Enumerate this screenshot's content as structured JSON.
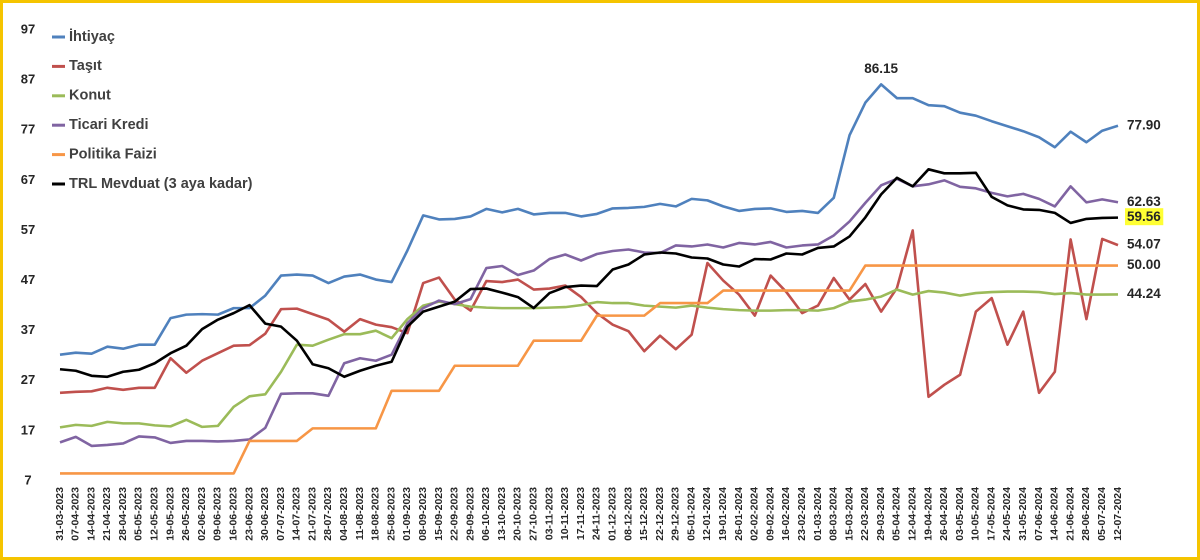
{
  "chart_data": {
    "type": "line",
    "categories": [
      "31-03-2023",
      "07-04-2023",
      "14-04-2023",
      "21-04-2023",
      "28-04-2023",
      "05-05-2023",
      "12-05-2023",
      "19-05-2023",
      "26-05-2023",
      "02-06-2023",
      "09-06-2023",
      "16-06-2023",
      "23-06-2023",
      "30-06-2023",
      "07-07-2023",
      "14-07-2023",
      "21-07-2023",
      "28-07-2023",
      "04-08-2023",
      "11-08-2023",
      "18-08-2023",
      "25-08-2023",
      "01-09-2023",
      "08-09-2023",
      "15-09-2023",
      "22-09-2023",
      "29-09-2023",
      "06-10-2023",
      "13-10-2023",
      "20-10-2023",
      "27-10-2023",
      "03-11-2023",
      "10-11-2023",
      "17-11-2023",
      "24-11-2023",
      "01-12-2023",
      "08-12-2023",
      "15-12-2023",
      "22-12-2023",
      "29-12-2023",
      "05-01-2024",
      "12-01-2024",
      "19-01-2024",
      "26-01-2024",
      "02-02-2024",
      "09-02-2024",
      "16-02-2024",
      "23-02-2024",
      "01-03-2024",
      "08-03-2024",
      "15-03-2024",
      "22-03-2024",
      "29-03-2024",
      "05-04-2024",
      "12-04-2024",
      "19-04-2024",
      "26-04-2024",
      "03-05-2024",
      "10-05-2024",
      "17-05-2024",
      "24-05-2024",
      "31-05-2024",
      "07-06-2024",
      "14-06-2024",
      "21-06-2024",
      "28-06-2024",
      "05-07-2024",
      "12-07-2024"
    ],
    "ylim": [
      7,
      97
    ],
    "yticks": [
      7,
      17,
      27,
      37,
      47,
      57,
      67,
      77,
      87,
      97
    ],
    "grid": false,
    "legend": "top-left",
    "series": [
      {
        "name": "İhtiyaç",
        "color": "#4f81bd",
        "values": [
          32.2,
          32.6,
          32.4,
          33.8,
          33.4,
          34.2,
          34.2,
          39.5,
          40.2,
          40.3,
          40.2,
          41.5,
          41.5,
          44,
          48,
          48.2,
          48,
          46.5,
          47.8,
          48.2,
          47.2,
          46.7,
          53,
          60,
          59.2,
          59.3,
          59.8,
          61.3,
          60.6,
          61.3,
          60.2,
          60.5,
          60.5,
          59.8,
          60.3,
          61.4,
          61.5,
          61.7,
          62.3,
          61.8,
          63.3,
          63,
          61.8,
          60.9,
          61.3,
          61.4,
          60.7,
          60.9,
          60.5,
          63.5,
          76,
          82.5,
          86.15,
          83.4,
          83.4,
          82,
          81.8,
          80.5,
          79.9,
          78.8,
          77.8,
          76.8,
          75.6,
          73.6,
          76.7,
          74.6,
          76.9,
          77.9
        ],
        "value_labels": [
          null,
          null,
          null,
          null,
          null,
          null,
          null,
          null,
          null,
          null,
          null,
          null,
          null,
          null,
          null,
          null,
          null,
          null,
          null,
          null,
          null,
          null,
          null,
          null,
          null,
          null,
          null,
          null,
          null,
          null,
          null,
          null,
          null,
          null,
          null,
          null,
          null,
          null,
          null,
          null,
          null,
          null,
          null,
          null,
          null,
          null,
          null,
          null,
          null,
          null,
          null,
          null,
          "86.15",
          null,
          null,
          null,
          null,
          null,
          null,
          null,
          null,
          null,
          null,
          null,
          null,
          null,
          null,
          "77.90"
        ]
      },
      {
        "name": "Taşıt",
        "color": "#c0504d",
        "values": [
          24.6,
          24.8,
          24.9,
          25.6,
          25.2,
          25.6,
          25.6,
          31.5,
          28.6,
          31,
          32.5,
          34,
          34.1,
          36.4,
          41.3,
          41.4,
          40.3,
          39.2,
          36.8,
          39.3,
          38.2,
          37.7,
          36.5,
          46.5,
          47.6,
          43.2,
          41,
          46.9,
          46.7,
          47.2,
          45.2,
          45.4,
          46,
          43.7,
          40.5,
          38.2,
          36.9,
          32.9,
          36,
          33.3,
          36.2,
          50.5,
          47,
          44.2,
          40,
          48,
          44.7,
          40.5,
          42,
          47.5,
          43.2,
          46.3,
          40.8,
          45.5,
          57,
          23.8,
          26.2,
          28.2,
          40.8,
          43.5,
          34.2,
          40.8,
          24.6,
          28.8,
          55.2,
          39.3,
          55.3,
          54.07
        ],
        "value_labels": [
          null,
          null,
          null,
          null,
          null,
          null,
          null,
          null,
          null,
          null,
          null,
          null,
          null,
          null,
          null,
          null,
          null,
          null,
          null,
          null,
          null,
          null,
          null,
          null,
          null,
          null,
          null,
          null,
          null,
          null,
          null,
          null,
          null,
          null,
          null,
          null,
          null,
          null,
          null,
          null,
          null,
          null,
          null,
          null,
          null,
          null,
          null,
          null,
          null,
          null,
          null,
          null,
          null,
          null,
          null,
          null,
          null,
          null,
          null,
          null,
          null,
          null,
          null,
          null,
          null,
          null,
          null,
          "54.07"
        ]
      },
      {
        "name": "Konut",
        "color": "#9bbb59",
        "values": [
          17.7,
          18.2,
          18,
          18.8,
          18.5,
          18.5,
          18.1,
          17.9,
          19.2,
          17.8,
          18,
          21.8,
          23.9,
          24.3,
          28.8,
          34.2,
          34,
          35.2,
          36.3,
          36.3,
          37,
          35.5,
          39.3,
          42,
          42.8,
          42.3,
          41.8,
          41.6,
          41.5,
          41.5,
          41.5,
          41.6,
          41.7,
          42.1,
          42.7,
          42.5,
          42.5,
          42,
          41.8,
          41.6,
          42,
          41.6,
          41.3,
          41.1,
          41,
          41,
          41.1,
          41.1,
          41,
          41.5,
          42.8,
          43.2,
          43.8,
          45.2,
          44.2,
          44.9,
          44.6,
          44,
          44.5,
          44.7,
          44.8,
          44.8,
          44.7,
          44.3,
          44.5,
          44.2,
          44.2,
          44.24
        ],
        "value_labels": [
          null,
          null,
          null,
          null,
          null,
          null,
          null,
          null,
          null,
          null,
          null,
          null,
          null,
          null,
          null,
          null,
          null,
          null,
          null,
          null,
          null,
          null,
          null,
          null,
          null,
          null,
          null,
          null,
          null,
          null,
          null,
          null,
          null,
          null,
          null,
          null,
          null,
          null,
          null,
          null,
          null,
          null,
          null,
          null,
          null,
          null,
          null,
          null,
          null,
          null,
          null,
          null,
          null,
          null,
          null,
          null,
          null,
          null,
          null,
          null,
          null,
          null,
          null,
          null,
          null,
          null,
          null,
          "44.24"
        ]
      },
      {
        "name": "Ticari Kredi",
        "color": "#8064a2",
        "values": [
          14.7,
          15.8,
          14,
          14.2,
          14.5,
          15.9,
          15.7,
          14.6,
          15,
          15,
          14.9,
          15,
          15.3,
          17.6,
          24.4,
          24.5,
          24.5,
          24,
          30.5,
          31.5,
          31,
          32.2,
          38.5,
          41.5,
          43,
          42.3,
          43.3,
          49.5,
          49.9,
          48.1,
          49,
          51.3,
          52.2,
          51,
          52.3,
          52.9,
          53.2,
          52.6,
          52.5,
          54,
          53.8,
          54.2,
          53.6,
          54.5,
          54.2,
          54.7,
          53.6,
          54,
          54.2,
          56,
          58.8,
          62.5,
          66,
          67.3,
          65.8,
          66.2,
          67,
          65.7,
          65.4,
          64.5,
          63.8,
          64.3,
          63.3,
          61.8,
          65.8,
          62.6,
          63.2,
          62.63
        ],
        "value_labels": [
          null,
          null,
          null,
          null,
          null,
          null,
          null,
          null,
          null,
          null,
          null,
          null,
          null,
          null,
          null,
          null,
          null,
          null,
          null,
          null,
          null,
          null,
          null,
          null,
          null,
          null,
          null,
          null,
          null,
          null,
          null,
          null,
          null,
          null,
          null,
          null,
          null,
          null,
          null,
          null,
          null,
          null,
          null,
          null,
          null,
          null,
          null,
          null,
          null,
          null,
          null,
          null,
          null,
          null,
          null,
          null,
          null,
          null,
          null,
          null,
          null,
          null,
          null,
          null,
          null,
          null,
          null,
          "62.63"
        ]
      },
      {
        "name": "Politika Faizi",
        "color": "#f79646",
        "values": [
          8.5,
          8.5,
          8.5,
          8.5,
          8.5,
          8.5,
          8.5,
          8.5,
          8.5,
          8.5,
          8.5,
          8.5,
          15,
          15,
          15,
          15,
          17.5,
          17.5,
          17.5,
          17.5,
          17.5,
          25,
          25,
          25,
          25,
          30,
          30,
          30,
          30,
          30,
          35,
          35,
          35,
          35,
          40,
          40,
          40,
          40,
          42.5,
          42.5,
          42.5,
          42.5,
          45,
          45,
          45,
          45,
          45,
          45,
          45,
          45,
          45,
          50,
          50,
          50,
          50,
          50,
          50,
          50,
          50,
          50,
          50,
          50,
          50,
          50,
          50,
          50,
          50,
          50
        ],
        "value_labels": [
          null,
          null,
          null,
          null,
          null,
          null,
          null,
          null,
          null,
          null,
          null,
          null,
          null,
          null,
          null,
          null,
          null,
          null,
          null,
          null,
          null,
          null,
          null,
          null,
          null,
          null,
          null,
          null,
          null,
          null,
          null,
          null,
          null,
          null,
          null,
          null,
          null,
          null,
          null,
          null,
          null,
          null,
          null,
          null,
          null,
          null,
          null,
          null,
          null,
          null,
          null,
          null,
          null,
          null,
          null,
          null,
          null,
          null,
          null,
          null,
          null,
          null,
          null,
          null,
          null,
          null,
          null,
          "50.00"
        ]
      },
      {
        "name": "TRL Mevduat (3 aya kadar)",
        "color": "#000000",
        "highlight": "#ffff33",
        "values": [
          29.3,
          29,
          28,
          27.8,
          28.8,
          29.2,
          30.5,
          32.5,
          34,
          37.3,
          39.2,
          40.5,
          42.1,
          38.4,
          37.8,
          35,
          30.3,
          29.5,
          27.8,
          29,
          30,
          30.8,
          37.8,
          40.8,
          41.8,
          42.8,
          45.3,
          45.4,
          44.6,
          43.7,
          41.5,
          44.5,
          45.7,
          46,
          45.9,
          49.2,
          50.2,
          52.2,
          52.6,
          52.4,
          51.6,
          51.4,
          50.2,
          49.8,
          51.3,
          51.2,
          52.4,
          52.2,
          53.5,
          53.8,
          55.8,
          59.6,
          64.2,
          67.5,
          65.8,
          69.2,
          68.4,
          68.4,
          68.5,
          63.7,
          62,
          61.2,
          61.1,
          60.5,
          58.5,
          59.3,
          59.5,
          59.56
        ],
        "value_labels": [
          null,
          null,
          null,
          null,
          null,
          null,
          null,
          null,
          null,
          null,
          null,
          null,
          null,
          null,
          null,
          null,
          null,
          null,
          null,
          null,
          null,
          null,
          null,
          null,
          null,
          null,
          null,
          null,
          null,
          null,
          null,
          null,
          null,
          null,
          null,
          null,
          null,
          null,
          null,
          null,
          null,
          null,
          null,
          null,
          null,
          null,
          null,
          null,
          null,
          null,
          null,
          null,
          null,
          null,
          null,
          null,
          null,
          null,
          null,
          null,
          null,
          null,
          null,
          null,
          null,
          null,
          null,
          "59.56"
        ]
      }
    ]
  }
}
